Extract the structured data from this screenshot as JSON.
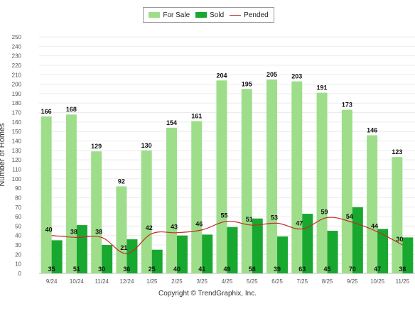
{
  "chart_data": {
    "type": "bar",
    "categories": [
      "9/24",
      "10/24",
      "11/24",
      "12/24",
      "1/25",
      "2/25",
      "3/25",
      "4/25",
      "5/25",
      "6/25",
      "7/25",
      "8/25",
      "9/25",
      "10/25",
      "11/25"
    ],
    "series": [
      {
        "name": "For Sale",
        "type": "bar",
        "color": "#9ede8a",
        "values": [
          166,
          168,
          129,
          92,
          130,
          154,
          161,
          204,
          195,
          205,
          203,
          191,
          173,
          146,
          123
        ]
      },
      {
        "name": "Sold",
        "type": "bar",
        "color": "#18a82f",
        "values": [
          35,
          51,
          30,
          36,
          25,
          40,
          41,
          49,
          58,
          39,
          63,
          45,
          70,
          47,
          38
        ]
      },
      {
        "name": "Pended",
        "type": "line",
        "color": "#c62828",
        "values": [
          40,
          38,
          38,
          21,
          42,
          43,
          46,
          55,
          51,
          53,
          47,
          59,
          54,
          44,
          30
        ]
      }
    ],
    "ylabel": "Number of Homes",
    "ylim": [
      0,
      250
    ],
    "ytick_step": 10,
    "grid": true,
    "legend_position": "top-center"
  },
  "copyright": "Copyright © TrendGraphix, Inc."
}
